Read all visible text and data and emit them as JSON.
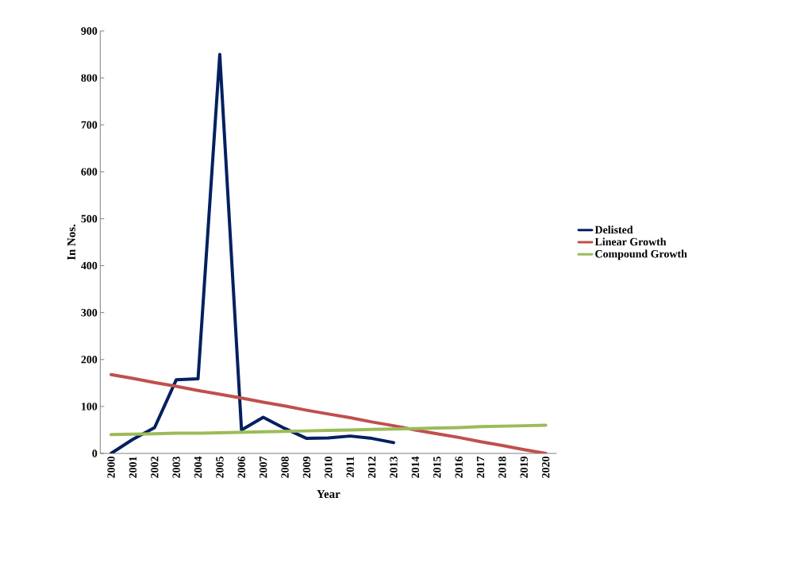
{
  "chart_data": {
    "type": "line",
    "xlabel": "Year",
    "ylabel": "In Nos.",
    "categories": [
      "2000",
      "2001",
      "2002",
      "2003",
      "2004",
      "2005",
      "2006",
      "2007",
      "2008",
      "2009",
      "2010",
      "2011",
      "2012",
      "2013",
      "2014",
      "2015",
      "2016",
      "2017",
      "2018",
      "2019",
      "2020"
    ],
    "series": [
      {
        "name": "Delisted",
        "color": "#002060",
        "values": [
          0,
          30,
          55,
          157,
          159,
          850,
          50,
          77,
          53,
          32,
          33,
          37,
          32,
          23,
          null,
          null,
          null,
          null,
          null,
          null,
          null
        ]
      },
      {
        "name": "Linear Growth",
        "color": "#c0504d",
        "values": [
          168,
          160,
          151,
          143,
          134,
          126,
          118,
          109,
          101,
          92,
          84,
          76,
          67,
          59,
          50,
          42,
          34,
          25,
          17,
          8,
          0
        ]
      },
      {
        "name": "Compound Growth",
        "color": "#9bbb59",
        "values": [
          40,
          41,
          42,
          43,
          43,
          44,
          45,
          46,
          47,
          48,
          49,
          50,
          51,
          52,
          53,
          54,
          55,
          57,
          58,
          59,
          60
        ]
      }
    ],
    "ylim": [
      0,
      900
    ],
    "yticks": [
      0,
      100,
      200,
      300,
      400,
      500,
      600,
      700,
      800,
      900
    ],
    "grid": false,
    "legend": "right",
    "marker": "none",
    "line_style": "solid"
  }
}
